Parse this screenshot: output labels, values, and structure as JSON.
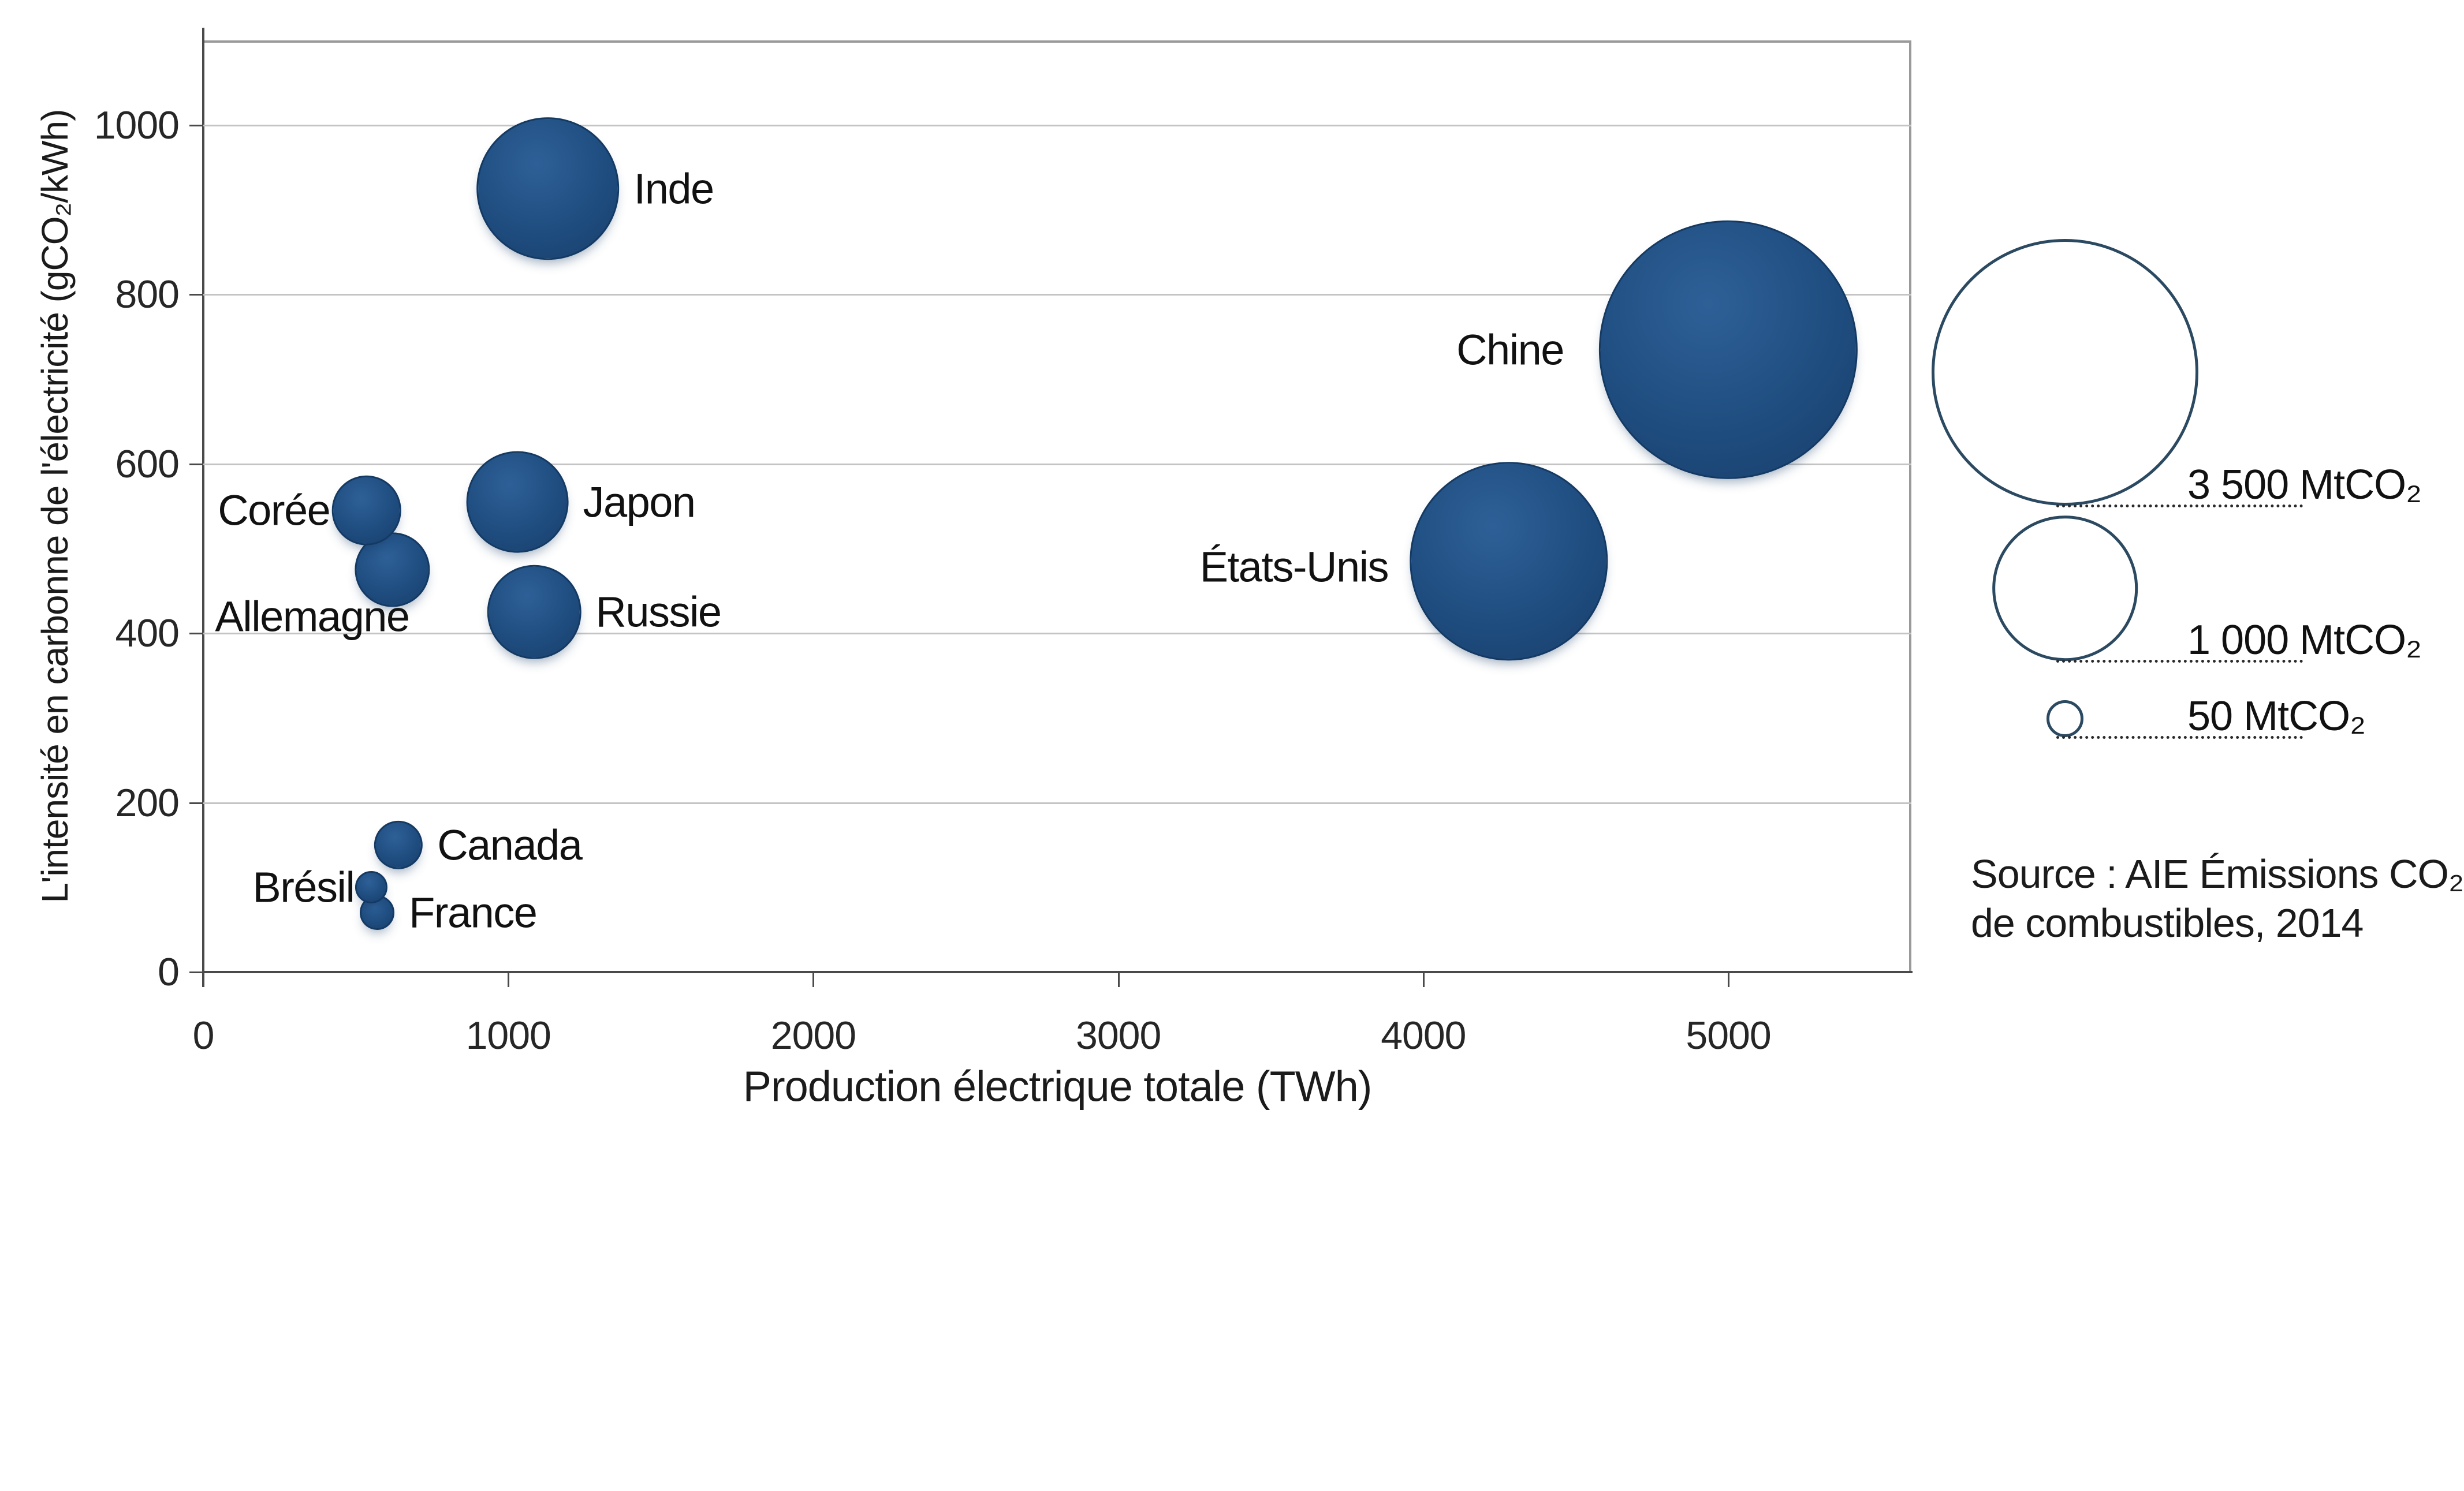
{
  "chart_data": {
    "type": "bubble",
    "title": "",
    "xlabel": "Production électrique totale (TWh)",
    "ylabel": "L'intensité en carbonne de l'électricité (gCO₂/kWh)",
    "x_ticks": [
      0,
      1000,
      2000,
      3000,
      4000,
      5000
    ],
    "x_max": 5600,
    "y_ticks": [
      0,
      200,
      400,
      600,
      800,
      1000
    ],
    "y_max": 1100,
    "grid": "horizontal-only",
    "legend_position": "right",
    "bubble_scale": {
      "reference_mtco2": 3500,
      "reference_radius_px": 226
    },
    "countries": [
      {
        "name": "Inde",
        "production_twh": 1130,
        "intensity_gco2_kwh": 925,
        "emissions_mtco2": 1000,
        "label_side": "right",
        "label_gap": 28
      },
      {
        "name": "Chine",
        "production_twh": 5000,
        "intensity_gco2_kwh": 735,
        "emissions_mtco2": 3350,
        "label_side": "left",
        "label_gap": 64
      },
      {
        "name": "États-Unis",
        "production_twh": 4280,
        "intensity_gco2_kwh": 485,
        "emissions_mtco2": 1950,
        "label_side": "left",
        "label_gap": 40,
        "label_dy": 10
      },
      {
        "name": "Japon",
        "production_twh": 1030,
        "intensity_gco2_kwh": 555,
        "emissions_mtco2": 500,
        "label_side": "right",
        "label_gap": 28
      },
      {
        "name": "Russie",
        "production_twh": 1085,
        "intensity_gco2_kwh": 425,
        "emissions_mtco2": 420,
        "label_side": "right",
        "label_gap": 28
      },
      {
        "name": "Corée",
        "production_twh": 535,
        "intensity_gco2_kwh": 545,
        "emissions_mtco2": 225,
        "label_side": "left",
        "label_gap": 6
      },
      {
        "name": "Allemagne",
        "production_twh": 620,
        "intensity_gco2_kwh": 475,
        "emissions_mtco2": 260,
        "label_side": "custom",
        "label_dx": -139,
        "label_dy": 81
      },
      {
        "name": "Canada",
        "production_twh": 640,
        "intensity_gco2_kwh": 150,
        "emissions_mtco2": 105,
        "label_side": "right",
        "label_gap": 28
      },
      {
        "name": "Brésil",
        "production_twh": 550,
        "intensity_gco2_kwh": 100,
        "emissions_mtco2": 43,
        "label_side": "left",
        "label_gap": 4
      },
      {
        "name": "France",
        "production_twh": 570,
        "intensity_gco2_kwh": 70,
        "emissions_mtco2": 50,
        "label_side": "right",
        "label_gap": 28
      }
    ],
    "legend": {
      "entries": [
        {
          "label": "3 500 MtCO₂",
          "value_mtco2": 3500
        },
        {
          "label": "1 000 MtCO₂",
          "value_mtco2": 1000
        },
        {
          "label": "50 MtCO₂",
          "value_mtco2": 50
        }
      ]
    },
    "source_lines": [
      "Source : AIE Émissions CO₂",
      "de combustibles, 2014"
    ]
  },
  "colors": {
    "bubble_fill": "#1e4b7d",
    "bubble_edge": "#143a64",
    "legend_stroke": "#2b4960",
    "gridline": "#c4c4c4",
    "axis": "#4a4a4a",
    "frame": "#9a9a9a",
    "text": "#1b1b1b"
  }
}
